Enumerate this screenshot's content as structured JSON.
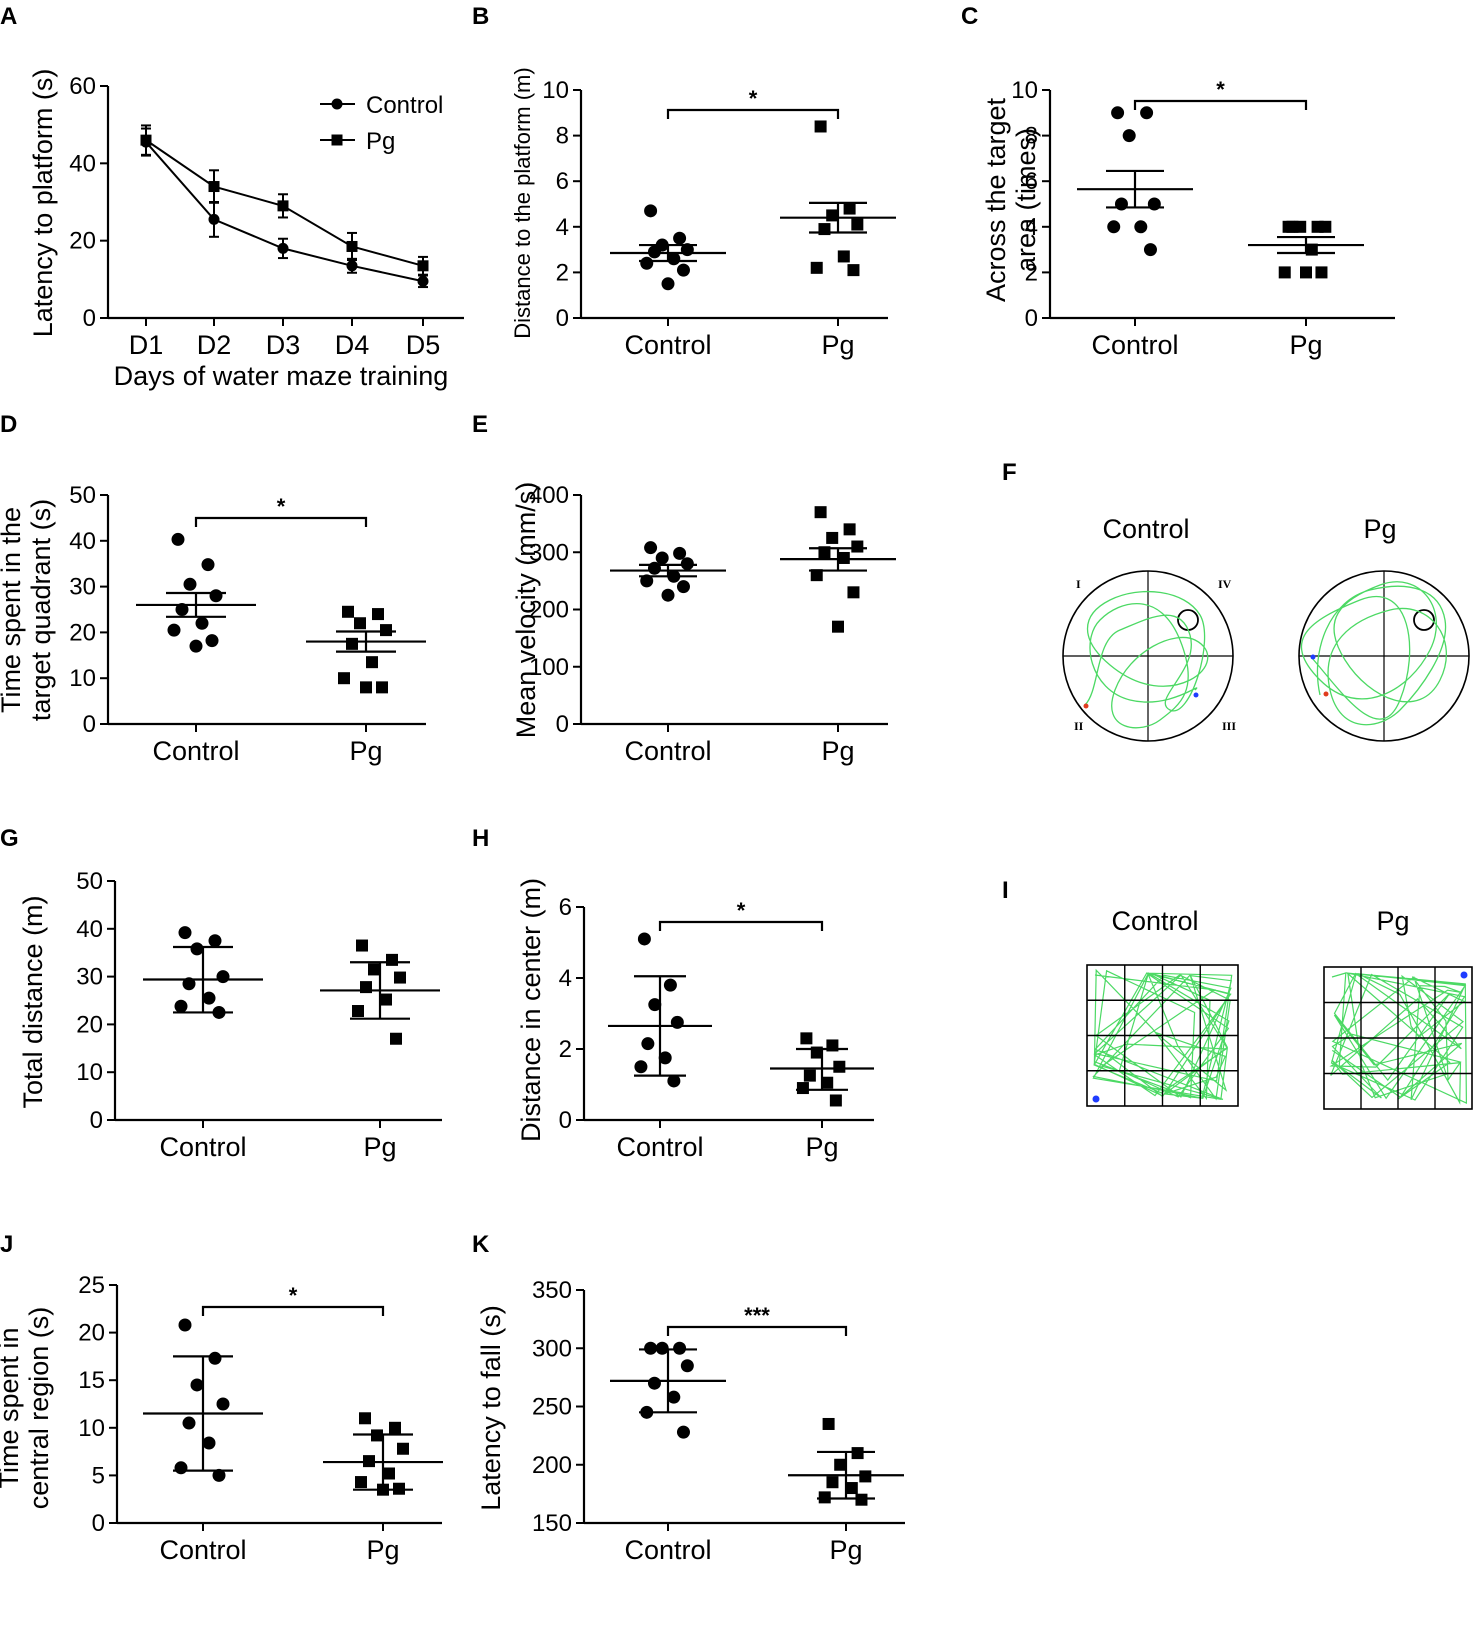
{
  "palette": {
    "ink": "#000000",
    "track": "#4cd964",
    "start_dot": "#e03c1e",
    "end_dot": "#1f3cff"
  },
  "chart_data": [
    {
      "id": "A",
      "panel_label": "A",
      "type": "line",
      "title": "",
      "xlabel": "Days of water maze training",
      "ylabel": "Latency to platform (s)",
      "categories": [
        "D1",
        "D2",
        "D3",
        "D4",
        "D5"
      ],
      "ylim": [
        0,
        60
      ],
      "yticks": [
        "0",
        "20",
        "40",
        "60"
      ],
      "legend_position": "top-right",
      "series": [
        {
          "name": "Control",
          "marker": "circle",
          "values": [
            45.5,
            25.5,
            18,
            13.5,
            9.5
          ],
          "sem": [
            3.5,
            4.5,
            2.5,
            1.8,
            1.5
          ]
        },
        {
          "name": "Pg",
          "marker": "square",
          "values": [
            46,
            34,
            29,
            18.5,
            13.5
          ],
          "sem": [
            3.8,
            4.2,
            3,
            3.5,
            2.3
          ]
        }
      ]
    },
    {
      "id": "B",
      "panel_label": "B",
      "type": "scatter",
      "ylabel": "Distance to the platform (m)",
      "ylim": [
        0,
        10
      ],
      "yticks": [
        "0",
        "2",
        "4",
        "6",
        "8",
        "10"
      ],
      "categories": [
        "Control",
        "Pg"
      ],
      "groups": [
        {
          "name": "Control",
          "marker": "circle",
          "points": [
            4.7,
            3.5,
            3.2,
            3.0,
            2.9,
            2.6,
            2.4,
            2.1,
            1.5
          ],
          "mean": 2.85,
          "err_low": 2.5,
          "err_high": 3.2
        },
        {
          "name": "Pg",
          "marker": "square",
          "points": [
            8.4,
            4.8,
            4.5,
            4.1,
            3.9,
            2.7,
            2.2,
            2.1
          ],
          "mean": 4.4,
          "err_low": 3.75,
          "err_high": 5.05
        }
      ],
      "significance": "*"
    },
    {
      "id": "C",
      "panel_label": "C",
      "type": "scatter",
      "ylabel": "Across the target area (times)",
      "ylim": [
        0,
        10
      ],
      "yticks": [
        "0",
        "2",
        "4",
        "6",
        "8",
        "10"
      ],
      "categories": [
        "Control",
        "Pg"
      ],
      "groups": [
        {
          "name": "Control",
          "marker": "circle",
          "points": [
            9,
            9,
            8,
            5,
            5,
            4,
            4,
            3
          ],
          "mean": 5.65,
          "err_low": 4.85,
          "err_high": 6.45
        },
        {
          "name": "Pg",
          "marker": "square",
          "points": [
            4,
            4,
            4,
            4,
            4,
            3,
            2,
            2,
            2
          ],
          "mean": 3.2,
          "err_low": 2.85,
          "err_high": 3.55
        }
      ],
      "significance": "*"
    },
    {
      "id": "D",
      "panel_label": "D",
      "type": "scatter",
      "ylabel": "Time spent in the target quadrant (s)",
      "ylim": [
        0,
        50
      ],
      "yticks": [
        "0",
        "10",
        "20",
        "30",
        "40",
        "50"
      ],
      "categories": [
        "Control",
        "Pg"
      ],
      "groups": [
        {
          "name": "Control",
          "marker": "circle",
          "points": [
            40.3,
            34.8,
            30.5,
            28,
            25,
            22,
            20.5,
            18.2,
            17
          ],
          "mean": 26,
          "err_low": 23.4,
          "err_high": 28.6
        },
        {
          "name": "Pg",
          "marker": "square",
          "points": [
            24.5,
            24,
            22,
            20.5,
            17.5,
            13.5,
            10,
            8,
            8
          ],
          "mean": 18,
          "err_low": 15.8,
          "err_high": 20.2
        }
      ],
      "significance": "*"
    },
    {
      "id": "E",
      "panel_label": "E",
      "type": "scatter",
      "ylabel": "Mean velocity (mm/s)",
      "ylim": [
        0,
        400
      ],
      "yticks": [
        "0",
        "100",
        "200",
        "300",
        "400"
      ],
      "categories": [
        "Control",
        "Pg"
      ],
      "groups": [
        {
          "name": "Control",
          "marker": "circle",
          "points": [
            308,
            298,
            290,
            280,
            272,
            258,
            250,
            240,
            225
          ],
          "mean": 268,
          "err_low": 258,
          "err_high": 278
        },
        {
          "name": "Pg",
          "marker": "square",
          "points": [
            370,
            340,
            325,
            310,
            300,
            290,
            260,
            230,
            170
          ],
          "mean": 288,
          "err_low": 268,
          "err_high": 307
        }
      ],
      "significance": ""
    },
    {
      "id": "G",
      "panel_label": "G",
      "type": "scatter",
      "ylabel": "Total distance (m)",
      "ylim": [
        0,
        50
      ],
      "yticks": [
        "0",
        "10",
        "20",
        "30",
        "40",
        "50"
      ],
      "categories": [
        "Control",
        "Pg"
      ],
      "groups": [
        {
          "name": "Control",
          "marker": "circle",
          "points": [
            39.2,
            37.5,
            35.8,
            30,
            28.5,
            25.5,
            23.8,
            22.5
          ],
          "mean": 29.4,
          "err_low": 22.5,
          "err_high": 36.2
        },
        {
          "name": "Pg",
          "marker": "square",
          "points": [
            36.5,
            33.5,
            31.5,
            29.8,
            27.8,
            25.2,
            22.8,
            17
          ],
          "mean": 27.1,
          "err_low": 21.2,
          "err_high": 33
        }
      ],
      "significance": ""
    },
    {
      "id": "H",
      "panel_label": "H",
      "type": "scatter",
      "ylabel": "Distance in center (m)",
      "ylim": [
        0,
        6
      ],
      "yticks": [
        "0",
        "2",
        "4",
        "6"
      ],
      "categories": [
        "Control",
        "Pg"
      ],
      "groups": [
        {
          "name": "Control",
          "marker": "circle",
          "points": [
            5.1,
            3.8,
            3.25,
            2.75,
            2.15,
            1.75,
            1.5,
            1.1
          ],
          "mean": 2.65,
          "err_low": 1.25,
          "err_high": 4.05
        },
        {
          "name": "Pg",
          "marker": "square",
          "points": [
            2.3,
            2.1,
            1.9,
            1.5,
            1.25,
            1.05,
            0.9,
            0.55
          ],
          "mean": 1.45,
          "err_low": 0.85,
          "err_high": 2.0
        }
      ],
      "significance": "*"
    },
    {
      "id": "J",
      "panel_label": "J",
      "type": "scatter",
      "ylabel": "Time spent in central region (s)",
      "ylim": [
        0,
        25
      ],
      "yticks": [
        "0",
        "5",
        "10",
        "15",
        "20",
        "25"
      ],
      "categories": [
        "Control",
        "Pg"
      ],
      "groups": [
        {
          "name": "Control",
          "marker": "circle",
          "points": [
            20.8,
            17.3,
            14.5,
            12.5,
            10.5,
            8.4,
            5.8,
            5.0
          ],
          "mean": 11.5,
          "err_low": 5.5,
          "err_high": 17.5
        },
        {
          "name": "Pg",
          "marker": "square",
          "points": [
            11,
            10,
            9.2,
            7.8,
            6.5,
            5.2,
            4.3,
            3.6,
            3.5
          ],
          "mean": 6.4,
          "err_low": 3.5,
          "err_high": 9.3
        }
      ],
      "significance": "*"
    },
    {
      "id": "K",
      "panel_label": "K",
      "type": "scatter",
      "ylabel": "Latency to fall (s)",
      "ylim": [
        150,
        350
      ],
      "yticks": [
        "150",
        "200",
        "250",
        "300",
        "350"
      ],
      "categories": [
        "Control",
        "Pg"
      ],
      "groups": [
        {
          "name": "Control",
          "marker": "circle",
          "points": [
            300,
            300,
            300,
            285,
            270,
            258,
            245,
            228
          ],
          "mean": 272,
          "err_low": 245,
          "err_high": 299
        },
        {
          "name": "Pg",
          "marker": "square",
          "points": [
            235,
            210,
            200,
            190,
            185,
            180,
            172,
            170
          ],
          "mean": 191,
          "err_low": 171,
          "err_high": 211
        }
      ],
      "significance": "***"
    }
  ],
  "track_panels": {
    "F": {
      "panel_label": "F",
      "titles": [
        "Control",
        "Pg"
      ],
      "quadrants": [
        "I",
        "IV",
        "II",
        "III"
      ]
    },
    "I": {
      "panel_label": "I",
      "titles": [
        "Control",
        "Pg"
      ]
    }
  }
}
